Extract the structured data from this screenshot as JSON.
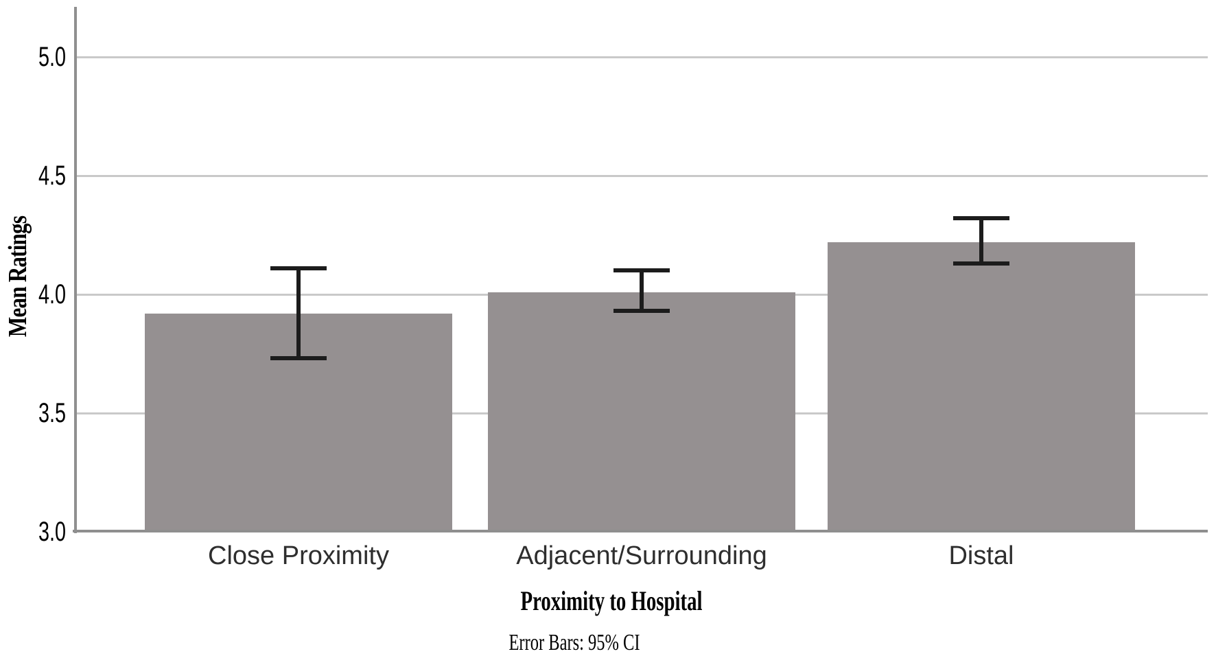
{
  "chart_data": {
    "type": "bar",
    "title": "",
    "xlabel": "Proximity to Hospital",
    "ylabel": "Mean Ratings",
    "footnote": "Error Bars: 95% CI",
    "categories": [
      "Close Proximity",
      "Adjacent/Surrounding",
      "Distal"
    ],
    "values": [
      3.92,
      4.01,
      4.22
    ],
    "error_bars": {
      "label": "95% CI",
      "upper": [
        4.11,
        4.1,
        4.32
      ],
      "lower": [
        3.73,
        3.93,
        4.13
      ]
    },
    "y_ticks": [
      "5.0",
      "4.5",
      "4.0",
      "3.5",
      "3.0"
    ],
    "ylim": [
      3.0,
      5.21
    ],
    "grid": "horizontal",
    "legend": "none",
    "colors": {
      "bar_fill": "#959091",
      "gridline": "#c9c9c9",
      "axis": "#8f8f8f",
      "error_bar": "#1c1c1c",
      "tick_text": "#000000",
      "category_text": "#2e2e2e",
      "background": "#ffffff"
    }
  }
}
